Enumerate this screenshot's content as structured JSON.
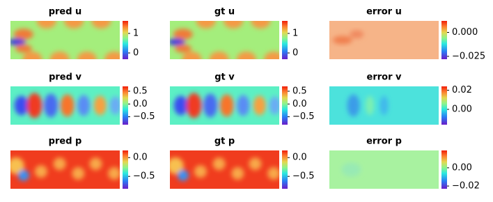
{
  "chart_data": [
    {
      "type": "heatmap",
      "title": "pred u",
      "clim": [
        -0.32,
        1.64
      ],
      "cticks": [
        0,
        1
      ]
    },
    {
      "type": "heatmap",
      "title": "gt u",
      "clim": [
        -0.32,
        1.64
      ],
      "cticks": [
        0,
        1
      ]
    },
    {
      "type": "heatmap",
      "title": "error u",
      "clim": [
        -0.028,
        0.012
      ],
      "cticks": [
        {
          "value": -0.025,
          "label": "−0.025"
        },
        {
          "value": 0,
          "label": "0.000"
        }
      ]
    },
    {
      "type": "heatmap",
      "title": "pred v",
      "clim": [
        -0.81,
        0.69
      ],
      "cticks": [
        {
          "value": -0.5,
          "label": "−0.5"
        },
        {
          "value": 0,
          "label": "0.0"
        },
        0.5
      ]
    },
    {
      "type": "heatmap",
      "title": "gt v",
      "clim": [
        -0.81,
        0.69
      ],
      "cticks": [
        {
          "value": -0.5,
          "label": "−0.5"
        },
        {
          "value": 0,
          "label": "0.0"
        },
        0.5
      ]
    },
    {
      "type": "heatmap",
      "title": "error v",
      "clim": [
        -0.016,
        0.024
      ],
      "cticks": [
        {
          "value": 0,
          "label": "0.00"
        },
        0.02
      ]
    },
    {
      "type": "heatmap",
      "title": "pred p",
      "clim": [
        -0.83,
        0.19
      ],
      "cticks": [
        {
          "value": -0.5,
          "label": "−0.5"
        },
        {
          "value": 0,
          "label": "0.0"
        }
      ]
    },
    {
      "type": "heatmap",
      "title": "gt p",
      "clim": [
        -0.83,
        0.19
      ],
      "cticks": [
        {
          "value": -0.5,
          "label": "−0.5"
        },
        {
          "value": 0,
          "label": "0.0"
        }
      ]
    },
    {
      "type": "heatmap",
      "title": "error p",
      "clim": [
        -0.023,
        0.019
      ],
      "cticks": [
        {
          "value": -0.02,
          "label": "−0.02"
        },
        {
          "value": 0,
          "label": "0.00"
        }
      ]
    }
  ]
}
